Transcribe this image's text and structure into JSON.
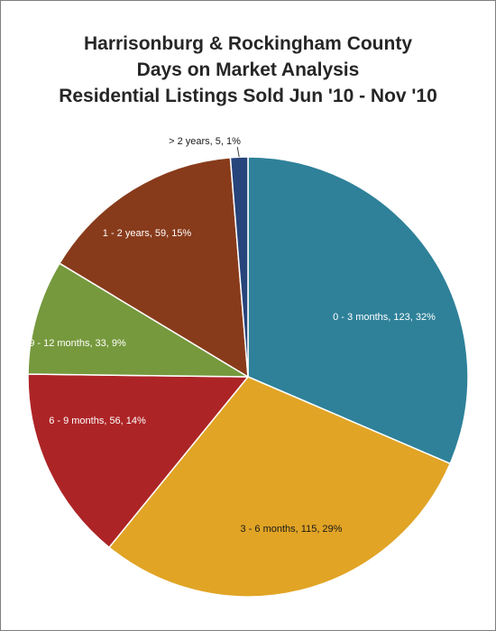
{
  "chart_data": {
    "type": "pie",
    "title_lines": [
      "Harrisonburg & Rockingham County",
      "Days on Market Analysis",
      "Residential Listings Sold Jun '10 - Nov '10"
    ],
    "slices": [
      {
        "category": "0 - 3 months",
        "value": 123,
        "percent": "32%",
        "label": "0 - 3 months, 123, 32%",
        "color": "#2e8199",
        "label_color": "#ffffff"
      },
      {
        "category": "3 - 6 months",
        "value": 115,
        "percent": "29%",
        "label": "3 - 6 months, 115, 29%",
        "color": "#e1a425",
        "label_color": "#1a1a1a"
      },
      {
        "category": "6 - 9 months",
        "value": 56,
        "percent": "14%",
        "label": "6 - 9 months, 56, 14%",
        "color": "#ad2426",
        "label_color": "#ffffff"
      },
      {
        "category": "9 - 12 months",
        "value": 33,
        "percent": "9%",
        "label": "9 - 12 months, 33, 9%",
        "color": "#76993d",
        "label_color": "#ffffff"
      },
      {
        "category": "1 - 2 years",
        "value": 59,
        "percent": "15%",
        "label": "1 - 2 years, 59, 15%",
        "color": "#883b1b",
        "label_color": "#ffffff"
      },
      {
        "category": "> 2 years",
        "value": 5,
        "percent": "1%",
        "label": "> 2 years, 5, 1%",
        "color": "#27447b",
        "label_color": "#1a1a1a"
      }
    ],
    "legend": "none"
  }
}
